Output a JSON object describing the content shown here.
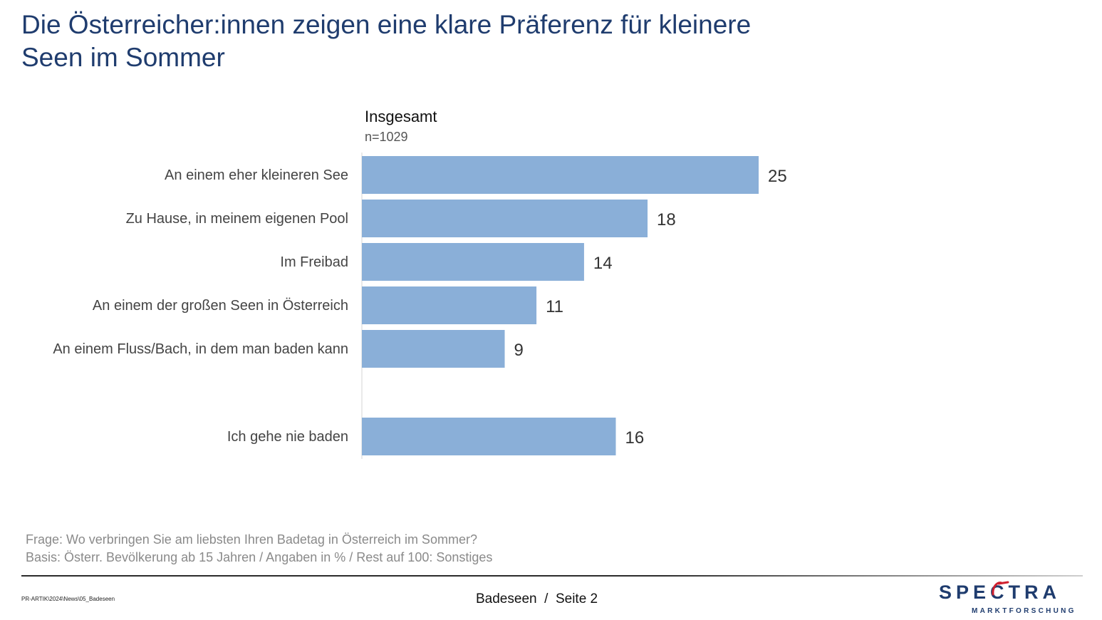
{
  "header": {
    "title_line1": "Die Österreicher:innen zeigen eine klare Präferenz für kleinere",
    "title_line2": "Seen im Sommer"
  },
  "chart_data": {
    "type": "bar",
    "orientation": "horizontal",
    "group_label": "Insgesamt",
    "sample_size": "n=1029",
    "categories": [
      "An einem eher kleineren See",
      "Zu Hause, in meinem eigenen Pool",
      "Im Freibad",
      "An einem der großen Seen in Österreich",
      "An einem Fluss/Bach, in dem man baden kann",
      "Ich gehe nie baden"
    ],
    "values": [
      25,
      18,
      14,
      11,
      9,
      16
    ],
    "xlim": [
      0,
      25
    ],
    "grid": false,
    "bar_color": "#8aafd8"
  },
  "footnotes": {
    "question": "Frage: Wo verbringen Sie am liebsten Ihren Badetag in Österreich im Sommer?",
    "basis": "Basis: Österr. Bevölkerung ab 15 Jahren / Angaben in % / Rest auf 100: Sonstiges"
  },
  "footer": {
    "file_path": "PR-ARTIK\\2024\\News\\05_Badeseen",
    "page_label": "Badeseen  /  Seite 2",
    "logo_text": "SPECTRA",
    "logo_sub": "MARKTFORSCHUNG",
    "logo_icon": "spectra-logo-icon"
  },
  "colors": {
    "title": "#1f3c6e",
    "logo_navy": "#1f3c6e",
    "logo_red": "#d0202e"
  }
}
